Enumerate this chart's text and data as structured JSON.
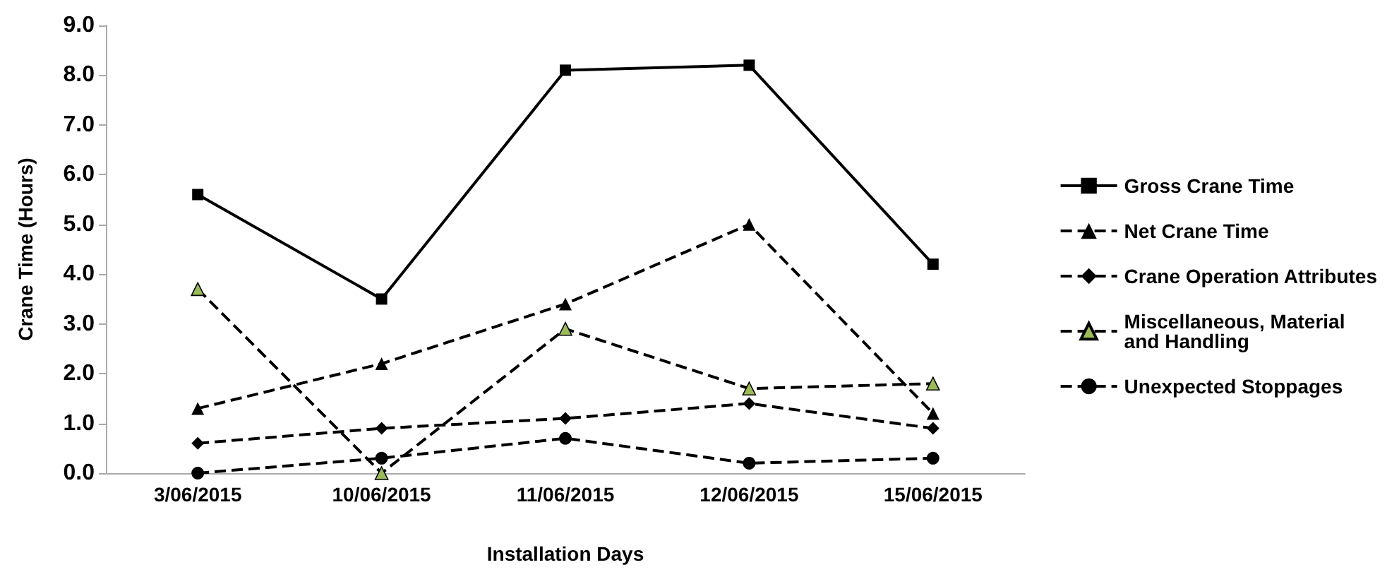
{
  "chart_data": {
    "type": "line",
    "xlabel": "Installation Days",
    "ylabel": "Crane Time (Hours)",
    "categories": [
      "3/06/2015",
      "10/06/2015",
      "11/06/2015",
      "12/06/2015",
      "15/06/2015"
    ],
    "series": [
      {
        "name": "Gross Crane Time",
        "color": "#000000",
        "marker": "square",
        "line_style": "solid",
        "values": [
          5.6,
          3.5,
          8.1,
          8.2,
          4.2
        ]
      },
      {
        "name": "Net Crane Time",
        "color": "#000000",
        "marker": "triangle",
        "line_style": "dashed",
        "values": [
          1.3,
          2.2,
          3.4,
          5.0,
          1.2
        ]
      },
      {
        "name": "Crane Operation Attributes",
        "color": "#000000",
        "marker": "diamond",
        "line_style": "dashed",
        "values": [
          0.6,
          0.9,
          1.1,
          1.4,
          0.9
        ]
      },
      {
        "name": "Miscellaneous, Material\nand Handling",
        "color": "#9bbb59",
        "marker": "triangle",
        "line_style": "dashed",
        "values": [
          3.7,
          0.0,
          2.9,
          1.7,
          1.8
        ]
      },
      {
        "name": "Unexpected Stoppages",
        "color": "#000000",
        "marker": "circle",
        "line_style": "dashed",
        "values": [
          0.0,
          0.3,
          0.7,
          0.2,
          0.3
        ]
      }
    ],
    "ylim": [
      0,
      9
    ],
    "yticks": [
      {
        "value": 0,
        "label": "0.0"
      },
      {
        "value": 1,
        "label": "1.0"
      },
      {
        "value": 2,
        "label": "2.0"
      },
      {
        "value": 3,
        "label": "3.0"
      },
      {
        "value": 4,
        "label": "4.0"
      },
      {
        "value": 5,
        "label": "5.0"
      },
      {
        "value": 6,
        "label": "6.0"
      },
      {
        "value": 7,
        "label": "7.0"
      },
      {
        "value": 8,
        "label": "8.0"
      },
      {
        "value": 9,
        "label": "9.0"
      }
    ],
    "grid": false,
    "legend": "right"
  }
}
